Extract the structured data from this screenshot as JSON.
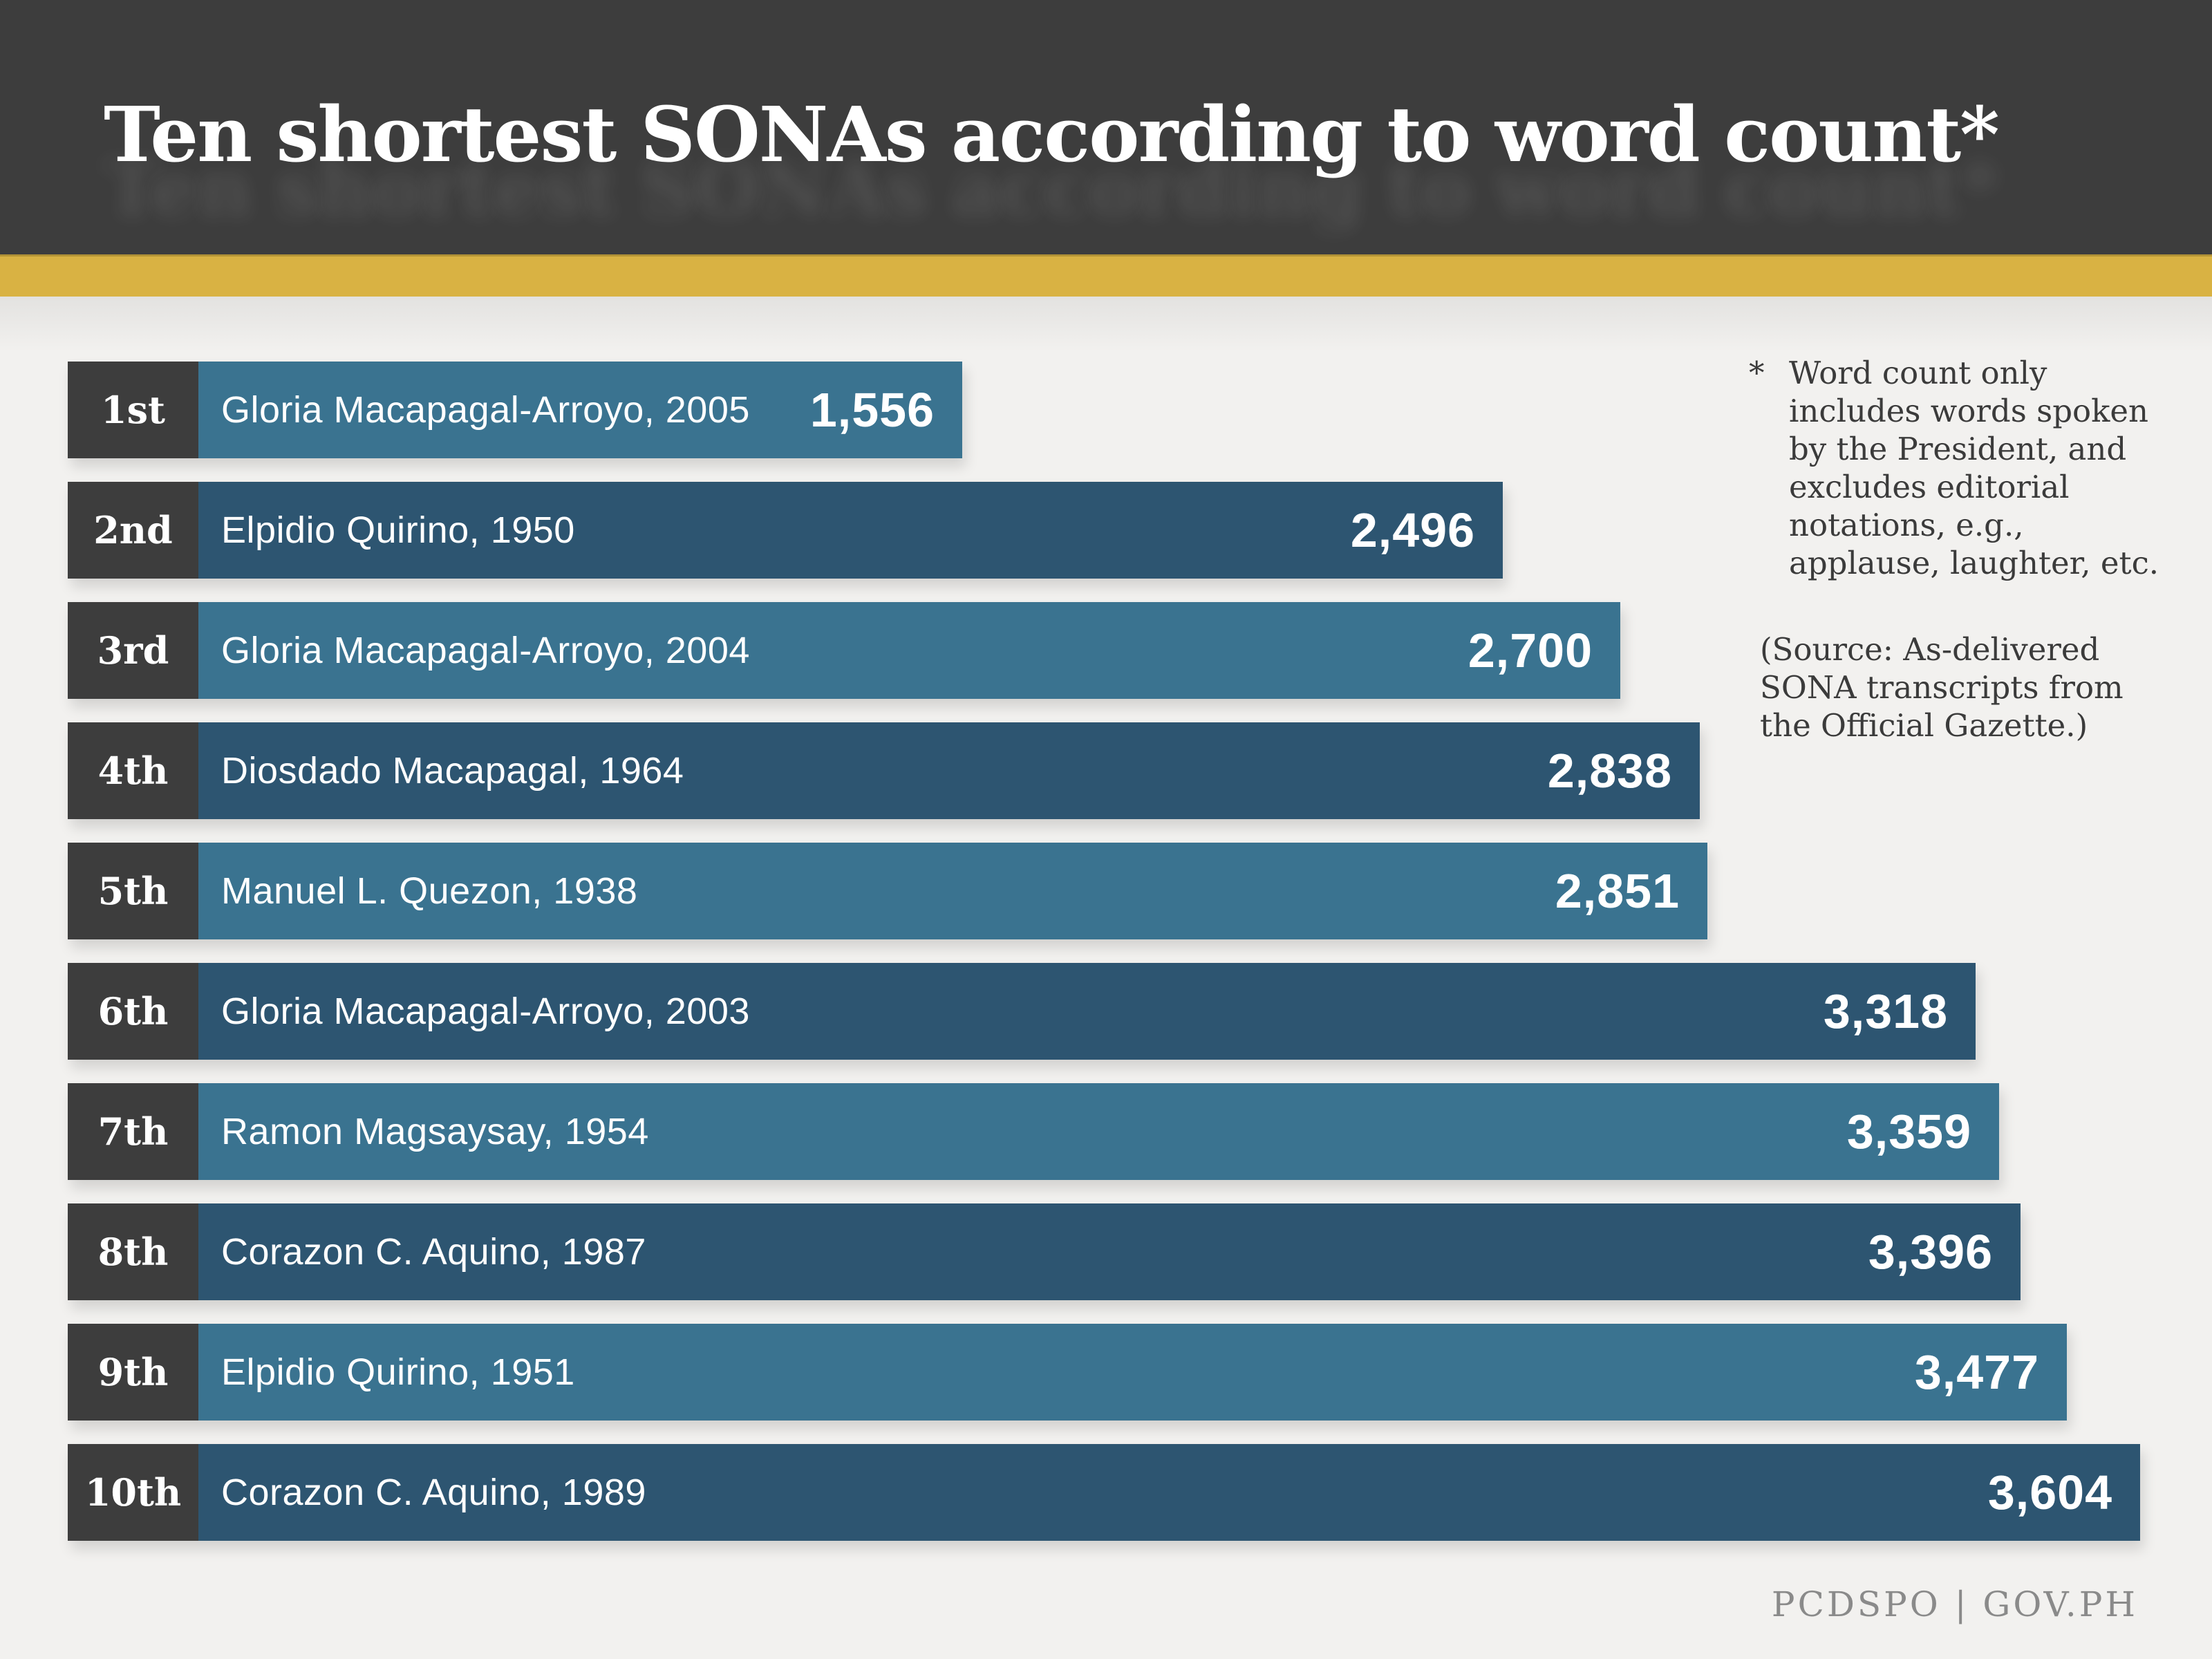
{
  "header": {
    "title": "Ten shortest SONAs according to word count*"
  },
  "colors": {
    "page-bg": "#f2f1ef",
    "header-bg": "#3d3d3d",
    "accent-gold": "#d9b243",
    "bar-light": "#3a7390",
    "bar-dark": "#2d5571",
    "rank-bg": "#3d3d3d",
    "note-text": "#3b3b3b",
    "footer-text": "#8a8a8a"
  },
  "note": {
    "marker": "*",
    "text": "Word count only includes words spoken by the President, and excludes editorial notations, e.g., applause, laughter, etc."
  },
  "source": {
    "text": "(Source: As-delivered SONA transcripts from the Official Gazette.)"
  },
  "footer": {
    "credit": "PCDSPO | GOV.PH"
  },
  "chart_data": {
    "type": "bar",
    "orientation": "horizontal",
    "title": "Ten shortest SONAs according to word count*",
    "categories": [
      "1st",
      "2nd",
      "3rd",
      "4th",
      "5th",
      "6th",
      "7th",
      "8th",
      "9th",
      "10th"
    ],
    "labels": [
      "Gloria Macapagal-Arroyo, 2005",
      "Elpidio Quirino, 1950",
      "Gloria Macapagal-Arroyo, 2004",
      "Diosdado Macapagal, 1964",
      "Manuel L. Quezon, 1938",
      "Gloria Macapagal-Arroyo, 2003",
      "Ramon Magsaysay, 1954",
      "Corazon C. Aquino, 1987",
      "Elpidio Quirino, 1951",
      "Corazon C. Aquino, 1989"
    ],
    "values": [
      1556,
      2496,
      2700,
      2838,
      2851,
      3318,
      3359,
      3396,
      3477,
      3604
    ],
    "value_labels": [
      "1,556",
      "2,496",
      "2,700",
      "2,838",
      "2,851",
      "3,318",
      "3,359",
      "3,396",
      "3,477",
      "3,604"
    ],
    "xlim": [
      0,
      3604
    ],
    "unit": "words",
    "legend": "none",
    "grid": false
  }
}
